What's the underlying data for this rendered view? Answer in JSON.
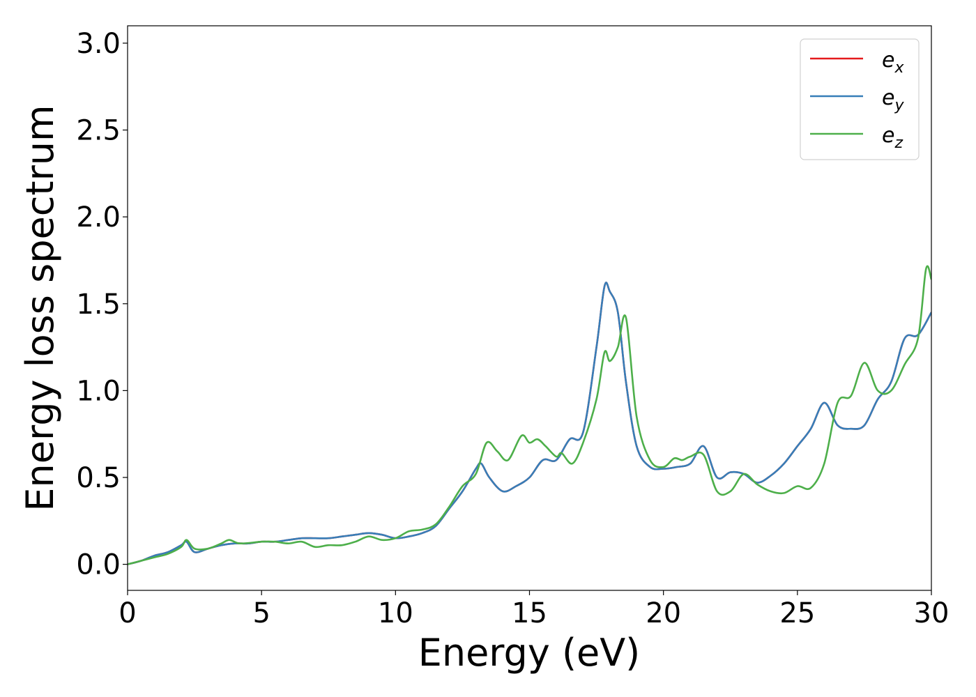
{
  "chart_data": {
    "type": "line",
    "xlabel": "Energy (eV)",
    "ylabel": "Energy loss spectrum",
    "xlim": [
      0,
      30
    ],
    "ylim": [
      -0.15,
      3.1
    ],
    "xticks": [
      "0",
      "5",
      "10",
      "15",
      "20",
      "25",
      "30"
    ],
    "yticks": [
      "0.0",
      "0.5",
      "1.0",
      "1.5",
      "2.0",
      "2.5",
      "3.0"
    ],
    "grid": false,
    "legend_position": "top-right",
    "series": [
      {
        "name_base": "e",
        "name_sub": "x",
        "color": "#e41a1c",
        "x": [
          0,
          0.5,
          1,
          1.5,
          2,
          2.2,
          2.5,
          3,
          3.5,
          4,
          4.5,
          5,
          5.5,
          6,
          6.5,
          7,
          7.5,
          8,
          8.5,
          9,
          9.5,
          10,
          10.5,
          11,
          11.5,
          12,
          12.5,
          13,
          13.2,
          13.5,
          14,
          14.5,
          15,
          15.5,
          16,
          16.5,
          17,
          17.5,
          17.8,
          18,
          18.3,
          18.6,
          19,
          19.5,
          20,
          20.5,
          21,
          21.5,
          22,
          22.5,
          23,
          23.5,
          24,
          24.5,
          25,
          25.5,
          26,
          26.5,
          27,
          27.5,
          28,
          28.5,
          29,
          29.5,
          30
        ],
        "y": [
          0,
          0.02,
          0.05,
          0.07,
          0.11,
          0.13,
          0.07,
          0.09,
          0.11,
          0.12,
          0.12,
          0.13,
          0.13,
          0.14,
          0.15,
          0.15,
          0.15,
          0.16,
          0.17,
          0.18,
          0.17,
          0.15,
          0.16,
          0.18,
          0.22,
          0.32,
          0.42,
          0.55,
          0.58,
          0.5,
          0.42,
          0.45,
          0.5,
          0.6,
          0.6,
          0.72,
          0.76,
          1.25,
          1.6,
          1.57,
          1.45,
          1.05,
          0.68,
          0.56,
          0.55,
          0.56,
          0.58,
          0.68,
          0.5,
          0.53,
          0.52,
          0.47,
          0.51,
          0.58,
          0.68,
          0.78,
          0.93,
          0.8,
          0.78,
          0.8,
          0.95,
          1.05,
          1.3,
          1.32,
          1.45
        ]
      },
      {
        "name_base": "e",
        "name_sub": "y",
        "color": "#377eb8",
        "x": [
          0,
          0.5,
          1,
          1.5,
          2,
          2.2,
          2.5,
          3,
          3.5,
          4,
          4.5,
          5,
          5.5,
          6,
          6.5,
          7,
          7.5,
          8,
          8.5,
          9,
          9.5,
          10,
          10.5,
          11,
          11.5,
          12,
          12.5,
          13,
          13.2,
          13.5,
          14,
          14.5,
          15,
          15.5,
          16,
          16.5,
          17,
          17.5,
          17.8,
          18,
          18.3,
          18.6,
          19,
          19.5,
          20,
          20.5,
          21,
          21.5,
          22,
          22.5,
          23,
          23.5,
          24,
          24.5,
          25,
          25.5,
          26,
          26.5,
          27,
          27.5,
          28,
          28.5,
          29,
          29.5,
          30
        ],
        "y": [
          0,
          0.02,
          0.05,
          0.07,
          0.11,
          0.13,
          0.07,
          0.09,
          0.11,
          0.12,
          0.12,
          0.13,
          0.13,
          0.14,
          0.15,
          0.15,
          0.15,
          0.16,
          0.17,
          0.18,
          0.17,
          0.15,
          0.16,
          0.18,
          0.22,
          0.32,
          0.42,
          0.55,
          0.58,
          0.5,
          0.42,
          0.45,
          0.5,
          0.6,
          0.6,
          0.72,
          0.76,
          1.25,
          1.6,
          1.57,
          1.45,
          1.05,
          0.68,
          0.56,
          0.55,
          0.56,
          0.58,
          0.68,
          0.5,
          0.53,
          0.52,
          0.47,
          0.51,
          0.58,
          0.68,
          0.78,
          0.93,
          0.8,
          0.78,
          0.8,
          0.95,
          1.05,
          1.3,
          1.32,
          1.45
        ]
      },
      {
        "name_base": "e",
        "name_sub": "z",
        "color": "#4daf4a",
        "x": [
          0,
          0.5,
          1,
          1.5,
          2,
          2.2,
          2.5,
          3,
          3.5,
          3.8,
          4.2,
          5,
          5.5,
          6,
          6.5,
          7,
          7.5,
          8,
          8.5,
          9,
          9.5,
          10,
          10.5,
          11,
          11.5,
          12,
          12.5,
          13,
          13.4,
          13.8,
          14.2,
          14.7,
          15,
          15.3,
          15.6,
          16,
          16.2,
          16.6,
          17,
          17.5,
          17.8,
          18,
          18.3,
          18.6,
          19,
          19.5,
          20,
          20.4,
          20.7,
          21,
          21.5,
          22,
          22.5,
          23,
          23.5,
          24,
          24.5,
          25,
          25.5,
          26,
          26.5,
          27,
          27.5,
          28,
          28.5,
          29,
          29.5,
          29.8,
          30
        ],
        "y": [
          0,
          0.02,
          0.04,
          0.06,
          0.1,
          0.14,
          0.09,
          0.09,
          0.12,
          0.14,
          0.12,
          0.13,
          0.13,
          0.12,
          0.13,
          0.1,
          0.11,
          0.11,
          0.13,
          0.16,
          0.14,
          0.15,
          0.19,
          0.2,
          0.23,
          0.33,
          0.45,
          0.52,
          0.7,
          0.65,
          0.6,
          0.74,
          0.7,
          0.72,
          0.68,
          0.62,
          0.64,
          0.58,
          0.7,
          0.95,
          1.22,
          1.17,
          1.25,
          1.42,
          0.85,
          0.6,
          0.56,
          0.61,
          0.6,
          0.62,
          0.63,
          0.42,
          0.42,
          0.52,
          0.46,
          0.42,
          0.41,
          0.45,
          0.44,
          0.58,
          0.93,
          0.97,
          1.16,
          1.0,
          1.0,
          1.15,
          1.3,
          1.7,
          1.64
        ]
      }
    ]
  }
}
